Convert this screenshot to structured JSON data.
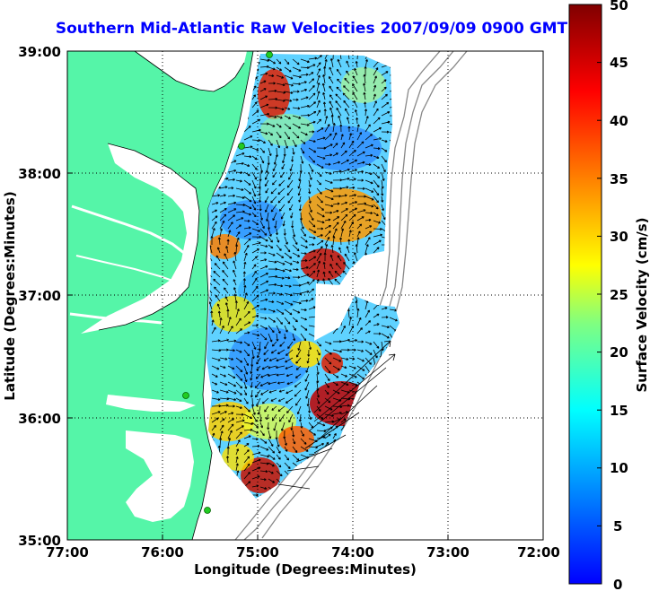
{
  "title": "Southern Mid-Atlantic Raw Velocities 2007/09/09 0900 GMT",
  "x_axis": {
    "label": "Longitude (Degrees:Minutes)",
    "ticks": [
      "77:00",
      "76:00",
      "75:00",
      "74:00",
      "73:00",
      "72:00"
    ],
    "range": [
      -77,
      -72
    ]
  },
  "y_axis": {
    "label": "Latitude (Degrees:Minutes)",
    "ticks": [
      "39:00",
      "38:00",
      "37:00",
      "36:00",
      "35:00"
    ],
    "range": [
      35,
      39
    ]
  },
  "colorbar": {
    "label": "Surface Velocity (cm/s)",
    "ticks": [
      "50",
      "45",
      "40",
      "35",
      "30",
      "25",
      "20",
      "15",
      "10",
      "5",
      "0"
    ],
    "range": [
      0,
      50
    ],
    "colormap": "jet"
  },
  "colors": {
    "land": "#55f5a8",
    "water": "#ffffff",
    "title": "#0000ff",
    "vector": "#000000",
    "station": "#22cc22",
    "bathymetry": "#888888"
  },
  "grid": "dotted"
}
